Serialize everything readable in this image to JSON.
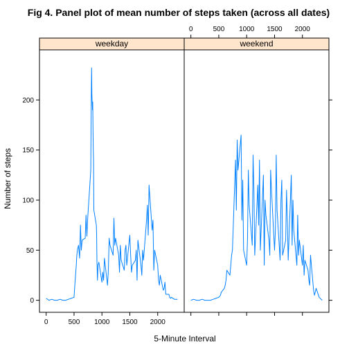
{
  "chart_data": {
    "type": "line",
    "title": "Fig 4. Panel plot of mean number of steps taken (across all dates)",
    "xlabel": "5-Minute Interval",
    "ylabel": "Number of steps",
    "xlim": [
      -120,
      2475
    ],
    "ylim": [
      -12,
      250
    ],
    "x_ticks": [
      0,
      500,
      1000,
      1500,
      2000
    ],
    "y_ticks": [
      0,
      50,
      100,
      150,
      200
    ],
    "x_tick_labels": [
      "0",
      "500",
      "1000",
      "1500",
      "2000"
    ],
    "y_tick_labels": [
      "0",
      "50",
      "100",
      "150",
      "200"
    ],
    "grid": false,
    "line_color": "#0080ff",
    "strip_color": "#ffe5cc",
    "panels": [
      {
        "label": "weekday",
        "x": [
          0,
          50,
          100,
          150,
          200,
          250,
          300,
          350,
          400,
          450,
          500,
          520,
          540,
          550,
          560,
          580,
          600,
          615,
          630,
          645,
          700,
          715,
          730,
          745,
          800,
          805,
          810,
          815,
          820,
          830,
          835,
          840,
          845,
          850,
          855,
          900,
          905,
          910,
          915,
          920,
          930,
          945,
          1000,
          1015,
          1030,
          1045,
          1100,
          1115,
          1130,
          1145,
          1200,
          1215,
          1230,
          1245,
          1300,
          1315,
          1330,
          1345,
          1400,
          1415,
          1430,
          1445,
          1500,
          1515,
          1530,
          1545,
          1600,
          1615,
          1630,
          1645,
          1700,
          1715,
          1730,
          1745,
          1800,
          1815,
          1830,
          1845,
          1900,
          1915,
          1930,
          1945,
          2000,
          2015,
          2030,
          2045,
          2100,
          2115,
          2130,
          2145,
          2200,
          2215,
          2230,
          2245,
          2300,
          2355
        ],
        "y": [
          2,
          0,
          1,
          0,
          0,
          1,
          0,
          0,
          1,
          2,
          3,
          20,
          35,
          45,
          50,
          55,
          42,
          75,
          50,
          60,
          62,
          85,
          64,
          82,
          130,
          170,
          210,
          232,
          205,
          190,
          198,
          170,
          150,
          140,
          90,
          75,
          65,
          40,
          30,
          20,
          35,
          38,
          18,
          28,
          20,
          42,
          15,
          30,
          62,
          55,
          45,
          82,
          55,
          62,
          45,
          28,
          55,
          40,
          30,
          50,
          55,
          35,
          65,
          45,
          28,
          35,
          40,
          50,
          20,
          60,
          35,
          25,
          50,
          40,
          80,
          95,
          65,
          115,
          70,
          80,
          30,
          50,
          35,
          20,
          15,
          25,
          10,
          12,
          18,
          6,
          6,
          3,
          2,
          3,
          1,
          1
        ]
      },
      {
        "label": "weekend",
        "x": [
          0,
          50,
          100,
          150,
          200,
          250,
          300,
          350,
          400,
          450,
          500,
          530,
          545,
          600,
          615,
          630,
          645,
          700,
          715,
          730,
          745,
          800,
          815,
          830,
          845,
          900,
          915,
          930,
          945,
          1000,
          1015,
          1030,
          1045,
          1100,
          1115,
          1130,
          1145,
          1200,
          1215,
          1230,
          1245,
          1300,
          1315,
          1330,
          1345,
          1400,
          1415,
          1430,
          1445,
          1500,
          1515,
          1530,
          1545,
          1600,
          1615,
          1630,
          1645,
          1700,
          1715,
          1730,
          1745,
          1800,
          1815,
          1830,
          1845,
          1900,
          1915,
          1930,
          1945,
          2000,
          2015,
          2030,
          2045,
          2100,
          2115,
          2130,
          2145,
          2200,
          2215,
          2230,
          2245,
          2300,
          2355
        ],
        "y": [
          0,
          1,
          0,
          0,
          1,
          0,
          0,
          0,
          1,
          2,
          3,
          5,
          8,
          12,
          15,
          20,
          30,
          25,
          35,
          45,
          50,
          140,
          90,
          160,
          130,
          165,
          80,
          120,
          50,
          35,
          60,
          130,
          95,
          55,
          145,
          110,
          45,
          115,
          75,
          140,
          50,
          125,
          35,
          100,
          85,
          60,
          45,
          130,
          110,
          50,
          70,
          145,
          90,
          40,
          100,
          120,
          45,
          60,
          110,
          80,
          40,
          125,
          55,
          100,
          70,
          35,
          85,
          45,
          60,
          35,
          55,
          25,
          40,
          30,
          20,
          15,
          45,
          10,
          5,
          8,
          12,
          3,
          0
        ]
      }
    ]
  }
}
